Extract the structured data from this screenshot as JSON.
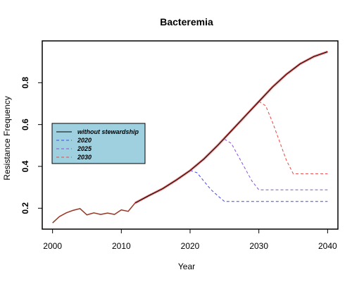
{
  "chart_data": {
    "type": "line",
    "title": "Bacteremia",
    "xlabel": "Year",
    "ylabel": "Resistance Frequency",
    "xlim": [
      1998.5,
      2041.5
    ],
    "ylim": [
      0.1,
      1.0
    ],
    "x_ticks": [
      2000,
      2010,
      2020,
      2030,
      2040
    ],
    "x_tick_labels": [
      "2000",
      "2010",
      "2020",
      "2030",
      "2040"
    ],
    "y_ticks": [
      0.2,
      0.4,
      0.6,
      0.8
    ],
    "y_tick_labels": [
      "0.2",
      "0.4",
      "0.6",
      "0.8"
    ],
    "grid": false,
    "legend_position": "left",
    "legend_bg": "#9fd0e0",
    "observed": {
      "color": "#cc4444",
      "x": [
        2000,
        2001,
        2002,
        2003,
        2004,
        2005,
        2006,
        2007,
        2008,
        2009,
        2010,
        2011,
        2012
      ],
      "y": [
        0.13,
        0.16,
        0.178,
        0.19,
        0.198,
        0.168,
        0.178,
        0.17,
        0.177,
        0.17,
        0.192,
        0.185,
        0.225
      ]
    },
    "series": [
      {
        "name": "without stewardship",
        "color": "#000000",
        "dash": "solid",
        "x": [
          2012,
          2014,
          2016,
          2018,
          2020,
          2022,
          2024,
          2026,
          2028,
          2030,
          2032,
          2034,
          2036,
          2038,
          2040
        ],
        "y": [
          0.225,
          0.26,
          0.293,
          0.335,
          0.38,
          0.435,
          0.5,
          0.57,
          0.64,
          0.71,
          0.78,
          0.84,
          0.89,
          0.925,
          0.948
        ]
      },
      {
        "name": "2020",
        "color": "#4444ee",
        "dash": "dashed",
        "x": [
          2020,
          2021,
          2022,
          2023,
          2024,
          2025,
          2030,
          2035,
          2040
        ],
        "y": [
          0.38,
          0.37,
          0.33,
          0.29,
          0.26,
          0.232,
          0.232,
          0.232,
          0.232
        ]
      },
      {
        "name": "2025",
        "color": "#8a4fd6",
        "dash": "dashed",
        "x": [
          2025,
          2026,
          2027,
          2028,
          2029,
          2030,
          2035,
          2040
        ],
        "y": [
          0.53,
          0.51,
          0.45,
          0.39,
          0.33,
          0.288,
          0.288,
          0.288
        ]
      },
      {
        "name": "2030",
        "color": "#ee4444",
        "dash": "dashed",
        "x": [
          2030,
          2031,
          2032,
          2033,
          2034,
          2035,
          2040
        ],
        "y": [
          0.71,
          0.69,
          0.61,
          0.52,
          0.43,
          0.365,
          0.365
        ]
      }
    ]
  }
}
